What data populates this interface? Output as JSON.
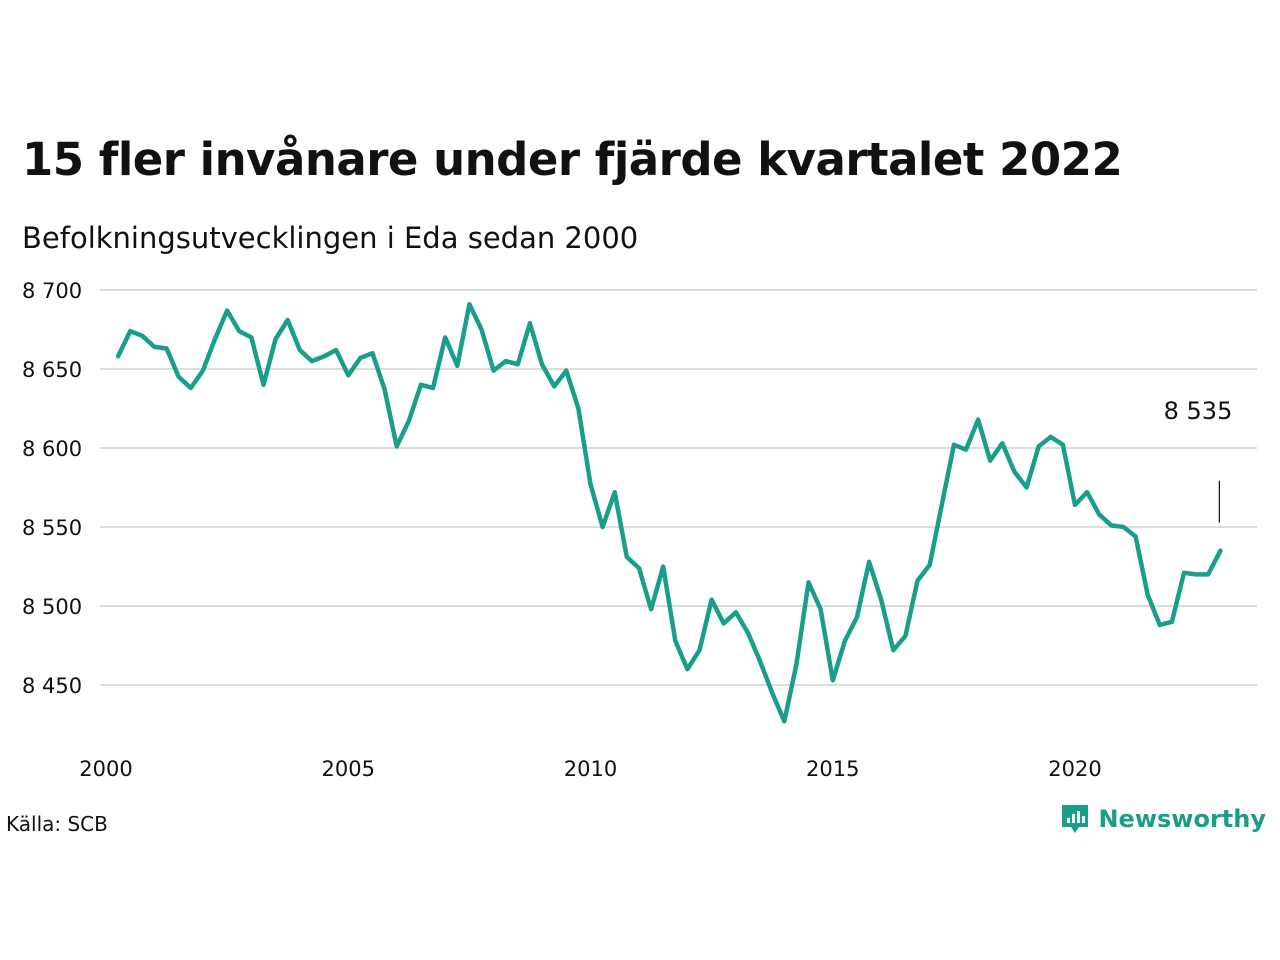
{
  "title": "15 fler invånare under fjärde kvartalet 2022",
  "subtitle": "Befolkningsutvecklingen i Eda sedan 2000",
  "source": "Källa: SCB",
  "brand": {
    "name": "Newsworthy",
    "logo_icon": "newsworthy-logo-icon",
    "color": "#199e8a"
  },
  "chart_data": {
    "type": "line",
    "title": "15 fler invånare under fjärde kvartalet 2022",
    "subtitle": "Befolkningsutvecklingen i Eda sedan 2000",
    "xlabel": "",
    "ylabel": "",
    "x_ticks": [
      2000,
      2005,
      2010,
      2015,
      2020
    ],
    "x_tick_labels": [
      "2000",
      "2005",
      "2010",
      "2015",
      "2020"
    ],
    "xlim": [
      2000,
      2023.25
    ],
    "y_ticks": [
      8450,
      8500,
      8550,
      8600,
      8650,
      8700
    ],
    "y_tick_labels": [
      "8 450",
      "8 500",
      "8 550",
      "8 600",
      "8 650",
      "8 700"
    ],
    "ylim": [
      8420,
      8700
    ],
    "grid": true,
    "line_color": "#199e8a",
    "series": [
      {
        "x": [
          2000.25,
          2000.5,
          2000.75,
          2001.0,
          2001.25,
          2001.5,
          2001.75,
          2002.0,
          2002.25,
          2002.5,
          2002.75,
          2003.0,
          2003.25,
          2003.5,
          2003.75,
          2004.0,
          2004.25,
          2004.5,
          2004.75,
          2005.0,
          2005.25,
          2005.5,
          2005.75,
          2006.0,
          2006.25,
          2006.5,
          2006.75,
          2007.0,
          2007.25,
          2007.5,
          2007.75,
          2008.0,
          2008.25,
          2008.5,
          2008.75,
          2009.0,
          2009.25,
          2009.5,
          2009.75,
          2010.0,
          2010.25,
          2010.5,
          2010.75,
          2011.0,
          2011.25,
          2011.5,
          2011.75,
          2012.0,
          2012.25,
          2012.5,
          2012.75,
          2013.0,
          2013.25,
          2013.5,
          2013.75,
          2014.0,
          2014.25,
          2014.5,
          2014.75,
          2015.0,
          2015.25,
          2015.5,
          2015.75,
          2016.0,
          2016.25,
          2016.5,
          2016.75,
          2017.0,
          2017.25,
          2017.5,
          2017.75,
          2018.0,
          2018.25,
          2018.5,
          2018.75,
          2019.0,
          2019.25,
          2019.5,
          2019.75,
          2020.0,
          2020.25,
          2020.5,
          2020.75,
          2021.0,
          2021.25,
          2021.5,
          2021.75,
          2022.0,
          2022.25,
          2022.5,
          2022.75,
          2023.0
        ],
        "values": [
          8658,
          8674,
          8671,
          8664,
          8663,
          8645,
          8638,
          8649,
          8669,
          8687,
          8674,
          8670,
          8640,
          8669,
          8681,
          8662,
          8655,
          8658,
          8662,
          8646,
          8657,
          8660,
          8637,
          8601,
          8617,
          8640,
          8638,
          8670,
          8652,
          8691,
          8675,
          8649,
          8655,
          8653,
          8679,
          8653,
          8639,
          8649,
          8625,
          8577,
          8550,
          8572,
          8531,
          8524,
          8498,
          8525,
          8478,
          8460,
          8472,
          8504,
          8489,
          8496,
          8483,
          8465,
          8445,
          8427,
          8463,
          8515,
          8498,
          8453,
          8478,
          8493,
          8528,
          8504,
          8472,
          8481,
          8516,
          8526,
          8564,
          8602,
          8599,
          8618,
          8592,
          8603,
          8585,
          8575,
          8601,
          8607,
          8602,
          8564,
          8572,
          8558,
          8551,
          8550,
          8544,
          8507,
          8488,
          8490,
          8521,
          8520,
          8520,
          8535
        ]
      }
    ],
    "annotations": [
      {
        "x": 2023.0,
        "text": "8 535"
      }
    ]
  }
}
